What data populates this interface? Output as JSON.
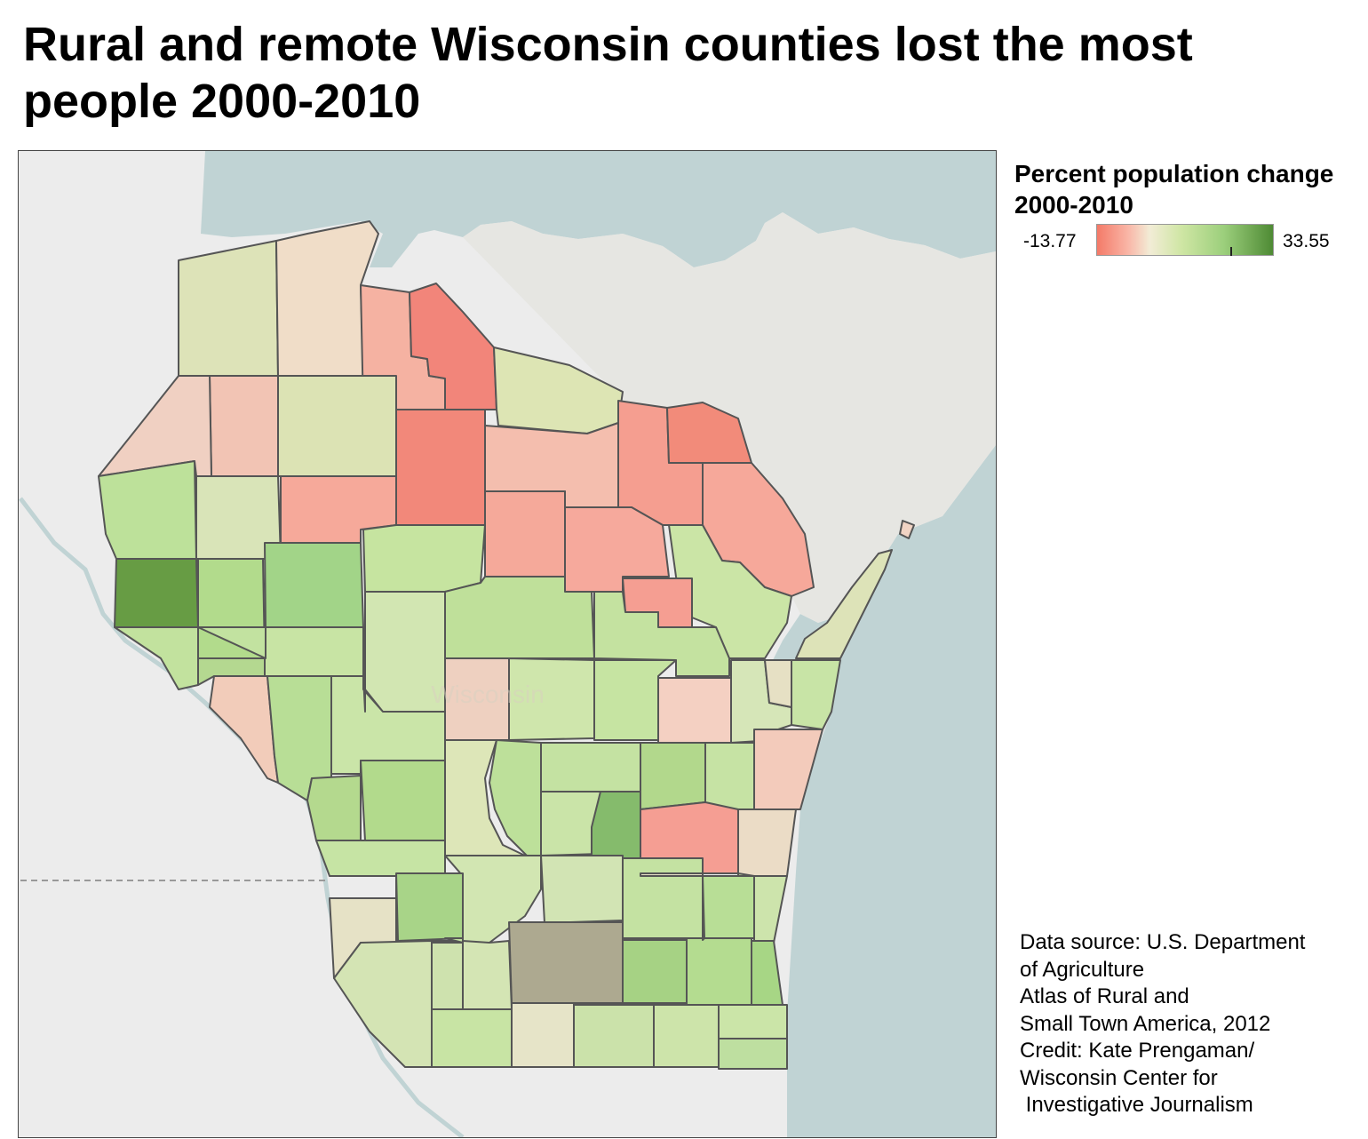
{
  "title": "Rural and remote Wisconsin counties lost the most people 2000-2010",
  "map": {
    "basemap_label": "Wisconsin",
    "colors": {
      "water": "#c0d3d4",
      "land": "#ececec",
      "county_border": "#555555",
      "state_line": "#999999"
    },
    "counties": [
      {
        "color": "#dde3b8"
      },
      {
        "color": "#f0ddc8"
      },
      {
        "color": "#f5b2a2"
      },
      {
        "color": "#f2857a"
      },
      {
        "color": "#dde5b4"
      },
      {
        "color": "#f2c4b4"
      },
      {
        "color": "#f0d0c2"
      },
      {
        "color": "#dce3b4"
      },
      {
        "color": "#f2887a"
      },
      {
        "color": "#f4beae"
      },
      {
        "color": "#f59e90"
      },
      {
        "color": "#f28b7a"
      },
      {
        "color": "#bde19a"
      },
      {
        "color": "#d9e4b8"
      },
      {
        "color": "#f6a99a"
      },
      {
        "color": "#f5a99a"
      },
      {
        "color": "#f6a99c"
      },
      {
        "color": "#f6a89a"
      },
      {
        "color": "#cbe5a6"
      },
      {
        "color": "#679c44"
      },
      {
        "color": "#b2db8c"
      },
      {
        "color": "#a2d488"
      },
      {
        "color": "#c6e4a0"
      },
      {
        "color": "#bfe09a"
      },
      {
        "color": "#f59e92"
      },
      {
        "color": "#c2e29e"
      },
      {
        "color": "#b4d890"
      },
      {
        "color": "#c8e4a4"
      },
      {
        "color": "#d2e6b2"
      },
      {
        "color": "#c4e2a0"
      },
      {
        "color": "#cfe6ac"
      },
      {
        "color": "#eed0c0"
      },
      {
        "color": "#f2ccba"
      },
      {
        "color": "#b8de96"
      },
      {
        "color": "#cae5a8"
      },
      {
        "color": "#c6e4a2"
      },
      {
        "color": "#d6e6b8"
      },
      {
        "color": "#f4d0c2"
      },
      {
        "color": "#c8e4a6"
      },
      {
        "color": "#e6e0c4"
      },
      {
        "color": "#b4d98e"
      },
      {
        "color": "#b2da8c"
      },
      {
        "color": "#dde6b8"
      },
      {
        "color": "#bde09a"
      },
      {
        "color": "#c4e2a2"
      },
      {
        "color": "#b2d88c"
      },
      {
        "color": "#c6e3a4"
      },
      {
        "color": "#cae4a8"
      },
      {
        "color": "#85bb6c"
      },
      {
        "color": "#f3cbbb"
      },
      {
        "color": "#f59e93"
      },
      {
        "color": "#ebdcc6"
      },
      {
        "color": "#c6e4a4"
      },
      {
        "color": "#d2e6b2"
      },
      {
        "color": "#d2e4b4"
      },
      {
        "color": "#c4e2a2"
      },
      {
        "color": "#e6e2c6"
      },
      {
        "color": "#a8d488"
      },
      {
        "color": "#b8de96"
      },
      {
        "color": "#cde4ac"
      },
      {
        "color": "#d4e4b4"
      },
      {
        "color": "#ada990"
      },
      {
        "color": "#d4e5b4"
      },
      {
        "color": "#a6d284"
      },
      {
        "color": "#b4dc90"
      },
      {
        "color": "#a7d685"
      },
      {
        "color": "#c8e4a4"
      },
      {
        "color": "#e6e4c8"
      },
      {
        "color": "#cbe2aa"
      },
      {
        "color": "#cde4aa"
      },
      {
        "color": "#cbe5a8"
      },
      {
        "color": "#bedfa0"
      },
      {
        "color": "#cee2ae"
      },
      {
        "color": "#c2e2a0"
      },
      {
        "color": "#c8e4a6"
      },
      {
        "color": "#cfe2b0"
      },
      {
        "color": "#b8de98"
      },
      {
        "color": "#e6e0c6"
      },
      {
        "color": "#cde3aa"
      },
      {
        "color": "#bde39c"
      },
      {
        "color": "#c2e0a0"
      },
      {
        "color": "#cde6ae"
      },
      {
        "color": "#c5e2a2"
      },
      {
        "color": "#b4dc90"
      },
      {
        "color": "#c8e4a6"
      },
      {
        "color": "#f1d4c4"
      }
    ]
  },
  "legend": {
    "title": "Percent population change 2000-2010",
    "min_label": "-13.77",
    "max_label": "33.55",
    "colors": [
      "#f47a68",
      "#f2ecd6",
      "#4e8a34"
    ]
  },
  "source": {
    "text": "Data source: U.S. Department\nof Agriculture\nAtlas of Rural and\nSmall Town America, 2012\nCredit: Kate Prengaman/\nWisconsin Center for\n Investigative Journalism"
  }
}
